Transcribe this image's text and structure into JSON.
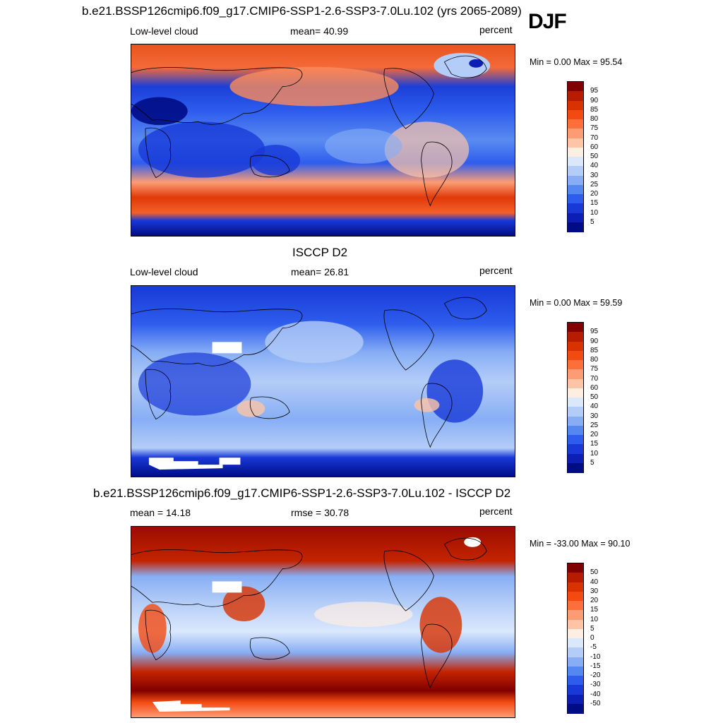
{
  "season": "DJF",
  "panels": [
    {
      "title": "b.e21.BSSP126cmip6.f09_g17.CMIP6-SSP1-2.6-SSP3-7.0Lu.102 (yrs 2065-2089)",
      "left_label": "Low-level cloud",
      "center_label": "mean=  40.99",
      "right_label": "percent",
      "minmax": "Min =   0.00 Max =  95.54",
      "colorbar": {
        "labels": [
          "95",
          "90",
          "85",
          "80",
          "75",
          "70",
          "60",
          "50",
          "40",
          "30",
          "25",
          "20",
          "15",
          "10",
          "5"
        ],
        "colors": [
          "#800000",
          "#b81c00",
          "#d83200",
          "#f34a12",
          "#fc6e3a",
          "#fc9c74",
          "#fdc4a6",
          "#fdeee2",
          "#dbe8fc",
          "#b4cdf8",
          "#87aef5",
          "#5487f0",
          "#2e5ded",
          "#1839d8",
          "#0c1eb4",
          "#000c85"
        ]
      },
      "map_kind": "model"
    },
    {
      "title": "ISCCP D2",
      "left_label": "Low-level cloud",
      "center_label": "mean=  26.81",
      "right_label": "percent",
      "minmax": "Min =   0.00 Max =  59.59",
      "colorbar": {
        "labels": [
          "95",
          "90",
          "85",
          "80",
          "75",
          "70",
          "60",
          "50",
          "40",
          "30",
          "25",
          "20",
          "15",
          "10",
          "5"
        ],
        "colors": [
          "#800000",
          "#b81c00",
          "#d83200",
          "#f34a12",
          "#fc6e3a",
          "#fc9c74",
          "#fdc4a6",
          "#fdeee2",
          "#dbe8fc",
          "#b4cdf8",
          "#87aef5",
          "#5487f0",
          "#2e5ded",
          "#1839d8",
          "#0c1eb4",
          "#000c85"
        ]
      },
      "map_kind": "obs"
    },
    {
      "title": "b.e21.BSSP126cmip6.f09_g17.CMIP6-SSP1-2.6-SSP3-7.0Lu.102 - ISCCP D2",
      "left_label": "mean =  14.18",
      "center_label": "rmse =  30.78",
      "right_label": "percent",
      "minmax": "Min = -33.00 Max =  90.10",
      "colorbar": {
        "labels": [
          "50",
          "40",
          "30",
          "20",
          "15",
          "10",
          "5",
          "0",
          "-5",
          "-10",
          "-15",
          "-20",
          "-30",
          "-40",
          "-50"
        ],
        "colors": [
          "#800000",
          "#b81c00",
          "#d83200",
          "#f34a12",
          "#fc6e3a",
          "#fc9c74",
          "#fdc4a6",
          "#fdeee2",
          "#dbe8fc",
          "#b4cdf8",
          "#87aef5",
          "#5487f0",
          "#2e5ded",
          "#1839d8",
          "#0c1eb4",
          "#000c85"
        ]
      },
      "map_kind": "diff"
    }
  ]
}
